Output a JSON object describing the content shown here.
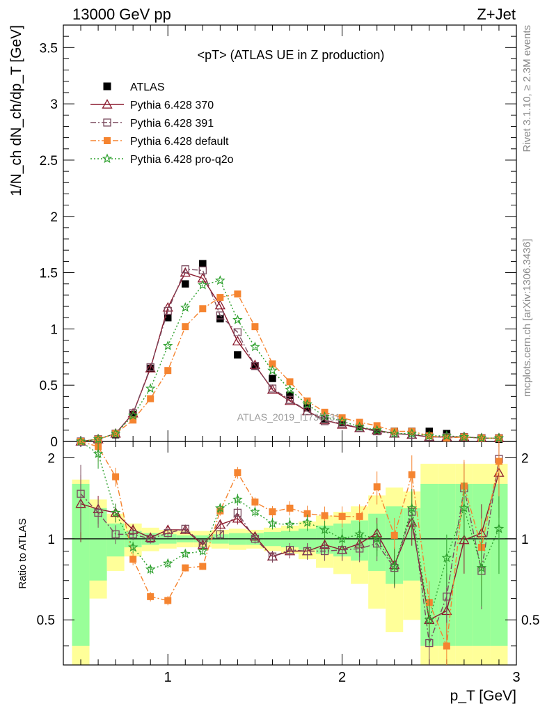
{
  "header": {
    "left": "13000 GeV pp",
    "right": "Z+Jet"
  },
  "side_labels": {
    "rivet": "Rivet 3.1.10, ≥ 2.3M events",
    "mcplots": "mcplots.cern.ch [arXiv:1306.3436]"
  },
  "chart_data": {
    "type": "scatter",
    "title": "<pT> (ATLAS UE in Z production)",
    "watermark": "ATLAS_2019_I1736531",
    "xlabel": "p_T [GeV]",
    "ylabel": "1/N_ch dN_ch/dp_T [GeV]",
    "ratio_ylabel": "Ratio to ATLAS",
    "xlim": [
      0.4,
      3.0
    ],
    "ylim": [
      0,
      3.7
    ],
    "ratio_ylim": [
      0.34,
      2.3
    ],
    "x_ticks": [
      "1",
      "2",
      "3"
    ],
    "y_ticks": [
      "0",
      "0.5",
      "1",
      "1.5",
      "2",
      "2.5",
      "3",
      "3.5"
    ],
    "ratio_ticks": [
      "0.5",
      "1",
      "2"
    ],
    "legend_position": "top-left",
    "x": [
      0.5,
      0.6,
      0.7,
      0.8,
      0.9,
      1.0,
      1.1,
      1.2,
      1.3,
      1.4,
      1.5,
      1.6,
      1.7,
      1.8,
      1.9,
      2.0,
      2.1,
      2.2,
      2.3,
      2.4,
      2.5,
      2.6,
      2.7,
      2.8,
      2.9
    ],
    "series": [
      {
        "name": "ATLAS",
        "color": "#000000",
        "marker": "square-filled",
        "values": [
          0.0,
          0.01,
          0.06,
          0.24,
          0.65,
          1.1,
          1.4,
          1.58,
          1.09,
          0.77,
          0.67,
          0.56,
          0.41,
          0.3,
          0.2,
          0.17,
          0.13,
          0.1,
          0.09,
          0.09,
          0.09,
          0.07,
          0.04,
          0.03,
          0.02
        ],
        "ratio": []
      },
      {
        "name": "Pythia 6.428 370",
        "color": "#8b1a2e",
        "marker": "triangle-open",
        "line": "solid",
        "values": [
          0.0,
          0.02,
          0.07,
          0.25,
          0.65,
          1.19,
          1.5,
          1.45,
          1.21,
          0.89,
          0.68,
          0.46,
          0.36,
          0.27,
          0.19,
          0.15,
          0.12,
          0.1,
          0.07,
          0.06,
          0.04,
          0.04,
          0.04,
          0.03,
          0.03
        ],
        "ratio": [
          1.35,
          1.29,
          1.25,
          1.08,
          1.01,
          1.08,
          1.08,
          0.95,
          1.13,
          1.19,
          1.02,
          0.86,
          0.9,
          0.9,
          0.95,
          0.91,
          0.96,
          1.05,
          0.8,
          1.15,
          0.5,
          0.54,
          0.99,
          1.05,
          1.76
        ]
      },
      {
        "name": "Pythia 6.428 391",
        "color": "#7a4a5e",
        "marker": "square-open",
        "line": "dashdot",
        "values": [
          0.0,
          0.02,
          0.07,
          0.25,
          0.66,
          1.16,
          1.53,
          1.52,
          1.12,
          0.97,
          0.67,
          0.47,
          0.37,
          0.27,
          0.18,
          0.16,
          0.12,
          0.09,
          0.07,
          0.06,
          0.04,
          0.04,
          0.04,
          0.03,
          0.03
        ],
        "ratio": [
          1.47,
          1.25,
          1.04,
          1.04,
          1.0,
          1.05,
          1.09,
          0.96,
          1.04,
          1.25,
          1.0,
          0.86,
          0.91,
          0.9,
          0.9,
          0.91,
          0.92,
          0.96,
          0.78,
          1.26,
          0.41,
          0.61,
          1.54,
          0.76,
          1.98
        ]
      },
      {
        "name": "Pythia 6.428 default",
        "color": "#f58430",
        "marker": "square-filled",
        "line": "dashdot",
        "values": [
          0.0,
          0.02,
          0.07,
          0.19,
          0.38,
          0.63,
          1.02,
          1.18,
          1.28,
          1.31,
          1.02,
          0.69,
          0.53,
          0.36,
          0.26,
          0.21,
          0.17,
          0.14,
          0.09,
          0.09,
          0.05,
          0.03,
          0.04,
          0.03,
          0.03
        ],
        "ratio": [
          2.6,
          2.2,
          1.7,
          0.84,
          0.61,
          0.59,
          0.78,
          0.79,
          1.27,
          1.76,
          1.37,
          1.26,
          1.3,
          1.24,
          1.22,
          1.21,
          1.21,
          1.56,
          1.03,
          1.73,
          0.58,
          0.4,
          1.57,
          0.93,
          1.94
        ]
      },
      {
        "name": "Pythia 6.428 pro-q2o",
        "color": "#2ea02e",
        "marker": "star-open",
        "line": "dotted",
        "values": [
          0.0,
          0.02,
          0.07,
          0.23,
          0.47,
          0.85,
          1.19,
          1.39,
          1.43,
          1.08,
          0.84,
          0.63,
          0.46,
          0.33,
          0.22,
          0.18,
          0.13,
          0.1,
          0.07,
          0.07,
          0.05,
          0.05,
          0.04,
          0.03,
          0.03
        ],
        "ratio": [
          2.6,
          2.07,
          1.25,
          0.93,
          0.77,
          0.81,
          0.88,
          0.9,
          1.3,
          1.4,
          1.26,
          1.14,
          1.13,
          1.15,
          1.08,
          1.0,
          1.04,
          1.0,
          0.79,
          1.3,
          0.5,
          0.85,
          1.3,
          0.78,
          1.09
        ]
      }
    ]
  }
}
